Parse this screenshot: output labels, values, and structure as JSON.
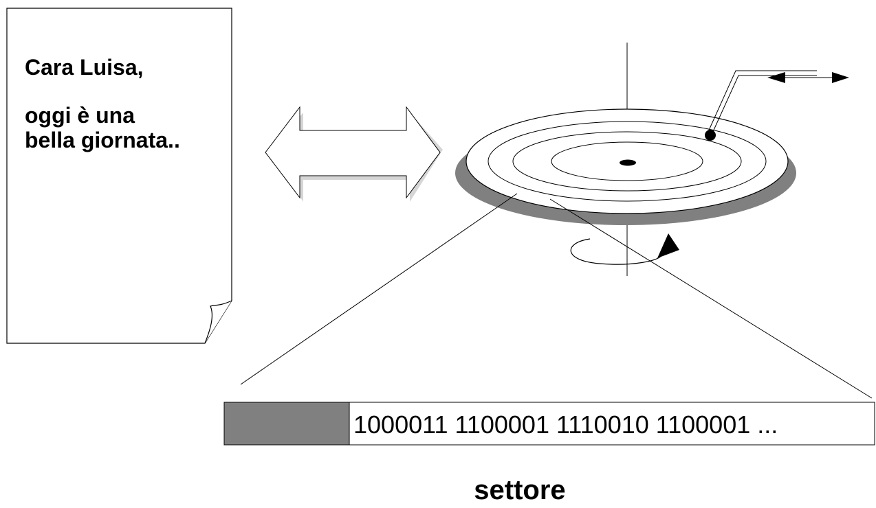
{
  "letter": {
    "greeting": "Cara Luisa,",
    "body": "oggi è una bella giornata.."
  },
  "sector": {
    "bits": "1000011 1100001 1110010 1100001 ...",
    "header_color": "#808080",
    "label": "settore"
  },
  "icons": {
    "transfer": "double-arrow-icon",
    "rotation": "rotation-arrow-icon",
    "head_motion": "bidirectional-arrow-icon"
  }
}
